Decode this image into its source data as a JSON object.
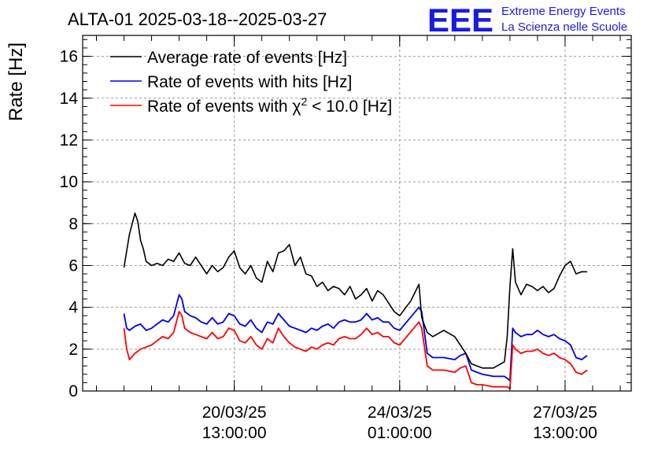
{
  "chart_data": {
    "type": "line",
    "title": "ALTA-01 2025-03-18--2025-03-27",
    "ylabel": "Rate [Hz]",
    "xlabel": "",
    "ylim": [
      0,
      17
    ],
    "yticks": [
      0,
      2,
      4,
      6,
      8,
      10,
      12,
      14,
      16
    ],
    "xlim": [
      -0.75,
      9.2
    ],
    "xticks": [
      {
        "x": 2.0,
        "date": "20/03/25",
        "time": "13:00:00"
      },
      {
        "x": 5.0,
        "date": "24/03/25",
        "time": "01:00:00"
      },
      {
        "x": 8.0,
        "date": "27/03/25",
        "time": "13:00:00"
      }
    ],
    "grid": true,
    "legend_position": "top-left",
    "series": [
      {
        "name": "Average rate of events [Hz]",
        "color": "#000000",
        "x": [
          0,
          0.1,
          0.2,
          0.25,
          0.3,
          0.35,
          0.4,
          0.5,
          0.6,
          0.7,
          0.8,
          0.9,
          1.0,
          1.1,
          1.2,
          1.3,
          1.4,
          1.5,
          1.6,
          1.7,
          1.8,
          1.9,
          2.0,
          2.1,
          2.2,
          2.3,
          2.4,
          2.5,
          2.6,
          2.7,
          2.8,
          2.9,
          3.0,
          3.1,
          3.2,
          3.3,
          3.4,
          3.5,
          3.6,
          3.7,
          3.8,
          3.9,
          4.0,
          4.1,
          4.2,
          4.3,
          4.4,
          4.5,
          4.6,
          4.7,
          4.8,
          4.9,
          5.0,
          5.2,
          5.35,
          5.4,
          5.5,
          5.6,
          5.8,
          6.0,
          6.1,
          6.2,
          6.3,
          6.4,
          6.5,
          6.7,
          6.9,
          6.95,
          7.0,
          7.05,
          7.1,
          7.2,
          7.3,
          7.4,
          7.5,
          7.6,
          7.7,
          7.8,
          7.9,
          8.0,
          8.1,
          8.2,
          8.3,
          8.4
        ],
        "values": [
          5.9,
          7.5,
          8.5,
          8.1,
          7.2,
          6.8,
          6.2,
          6.0,
          6.1,
          6.0,
          6.3,
          6.2,
          6.6,
          6.1,
          6.0,
          6.4,
          6.0,
          5.6,
          6.0,
          5.7,
          5.9,
          6.4,
          6.7,
          5.9,
          5.6,
          6.0,
          5.4,
          5.2,
          6.2,
          5.7,
          6.6,
          6.7,
          7.0,
          6.0,
          6.4,
          5.6,
          5.5,
          5.0,
          5.2,
          4.8,
          5.0,
          4.9,
          4.6,
          5.0,
          4.4,
          4.6,
          4.9,
          4.3,
          4.8,
          4.6,
          4.2,
          3.8,
          3.6,
          4.3,
          5.1,
          3.5,
          2.8,
          2.6,
          2.9,
          2.6,
          2.2,
          1.8,
          1.3,
          1.2,
          1.1,
          1.1,
          1.4,
          2.6,
          5.0,
          6.8,
          5.2,
          4.6,
          5.1,
          5.0,
          4.8,
          5.0,
          4.7,
          4.9,
          5.5,
          6.0,
          6.2,
          5.6,
          5.7,
          5.7
        ]
      },
      {
        "name": "Rate of events with hits [Hz]",
        "color": "#0000e6",
        "x": [
          0,
          0.05,
          0.1,
          0.2,
          0.3,
          0.4,
          0.5,
          0.6,
          0.7,
          0.8,
          0.9,
          1.0,
          1.05,
          1.1,
          1.2,
          1.3,
          1.4,
          1.5,
          1.6,
          1.7,
          1.8,
          1.9,
          2.0,
          2.1,
          2.2,
          2.3,
          2.4,
          2.5,
          2.6,
          2.7,
          2.8,
          2.9,
          3.0,
          3.1,
          3.2,
          3.3,
          3.4,
          3.5,
          3.6,
          3.7,
          3.8,
          3.9,
          4.0,
          4.1,
          4.2,
          4.3,
          4.4,
          4.5,
          4.6,
          4.7,
          4.8,
          4.9,
          5.0,
          5.35,
          5.4,
          5.5,
          5.6,
          5.8,
          6.0,
          6.1,
          6.2,
          6.3,
          6.4,
          6.5,
          6.7,
          6.9,
          6.95,
          7.0,
          7.05,
          7.1,
          7.2,
          7.3,
          7.4,
          7.5,
          7.6,
          7.7,
          7.8,
          7.9,
          8.0,
          8.1,
          8.2,
          8.3,
          8.4
        ],
        "values": [
          3.7,
          3.0,
          2.9,
          3.1,
          3.2,
          2.9,
          3.0,
          3.2,
          3.4,
          3.3,
          3.6,
          4.6,
          4.4,
          3.8,
          3.6,
          3.5,
          3.3,
          3.2,
          3.5,
          3.2,
          3.3,
          3.7,
          3.6,
          3.2,
          3.1,
          3.4,
          3.0,
          2.8,
          3.3,
          3.2,
          3.7,
          3.4,
          3.1,
          3.0,
          2.9,
          2.8,
          3.0,
          2.9,
          3.1,
          3.2,
          3.0,
          3.3,
          3.4,
          3.3,
          3.3,
          3.4,
          3.7,
          3.4,
          3.5,
          3.3,
          3.3,
          3.0,
          2.9,
          4.0,
          3.8,
          1.8,
          1.6,
          1.6,
          1.5,
          1.7,
          1.8,
          1.0,
          0.9,
          0.8,
          0.7,
          0.7,
          0.6,
          0.5,
          3.0,
          2.8,
          2.6,
          2.7,
          2.7,
          2.9,
          2.7,
          2.6,
          2.7,
          2.5,
          2.4,
          2.2,
          1.6,
          1.5,
          1.7
        ]
      },
      {
        "name": "Rate of events with χ² < 10.0 [Hz]",
        "color": "#ff0000",
        "x": [
          0,
          0.05,
          0.1,
          0.2,
          0.3,
          0.4,
          0.5,
          0.6,
          0.7,
          0.8,
          0.9,
          1.0,
          1.05,
          1.1,
          1.2,
          1.3,
          1.4,
          1.5,
          1.6,
          1.7,
          1.8,
          1.9,
          2.0,
          2.1,
          2.2,
          2.3,
          2.4,
          2.5,
          2.6,
          2.7,
          2.8,
          2.9,
          3.0,
          3.1,
          3.2,
          3.3,
          3.4,
          3.5,
          3.6,
          3.7,
          3.8,
          3.9,
          4.0,
          4.1,
          4.2,
          4.3,
          4.4,
          4.5,
          4.6,
          4.7,
          4.8,
          4.9,
          5.0,
          5.35,
          5.4,
          5.5,
          5.6,
          5.8,
          6.0,
          6.1,
          6.2,
          6.3,
          6.4,
          6.5,
          6.7,
          6.9,
          6.95,
          7.0,
          7.05,
          7.1,
          7.2,
          7.3,
          7.4,
          7.5,
          7.6,
          7.7,
          7.8,
          7.9,
          8.0,
          8.1,
          8.2,
          8.3,
          8.4
        ],
        "values": [
          3.0,
          2.0,
          1.5,
          1.8,
          2.0,
          2.1,
          2.2,
          2.4,
          2.6,
          2.5,
          2.8,
          3.8,
          3.6,
          3.0,
          2.8,
          2.7,
          2.6,
          2.5,
          2.8,
          2.5,
          2.6,
          3.0,
          2.9,
          2.4,
          2.3,
          2.6,
          2.2,
          2.0,
          2.5,
          2.3,
          3.0,
          2.6,
          2.3,
          2.1,
          2.0,
          1.9,
          2.1,
          2.0,
          2.2,
          2.3,
          2.2,
          2.5,
          2.6,
          2.5,
          2.5,
          2.7,
          3.0,
          2.7,
          2.8,
          2.6,
          2.6,
          2.3,
          2.2,
          3.3,
          3.0,
          1.2,
          1.0,
          1.0,
          0.9,
          1.1,
          1.2,
          0.4,
          0.3,
          0.3,
          0.2,
          0.2,
          0.2,
          0.1,
          2.2,
          2.0,
          1.8,
          1.9,
          1.9,
          2.0,
          1.8,
          1.7,
          1.8,
          1.6,
          1.5,
          1.3,
          0.9,
          0.8,
          1.0
        ]
      }
    ]
  },
  "branding": {
    "logo_text": "EEE",
    "line1": "Extreme Energy Events",
    "line2": "La Scienza nelle Scuole"
  },
  "legend": {
    "avg_label": "Average rate of events [Hz]",
    "hits_label": "Rate of events with hits [Hz]",
    "chi_prefix": "Rate of events with χ",
    "chi_sup": "2",
    "chi_suffix": " < 10.0 [Hz]"
  }
}
